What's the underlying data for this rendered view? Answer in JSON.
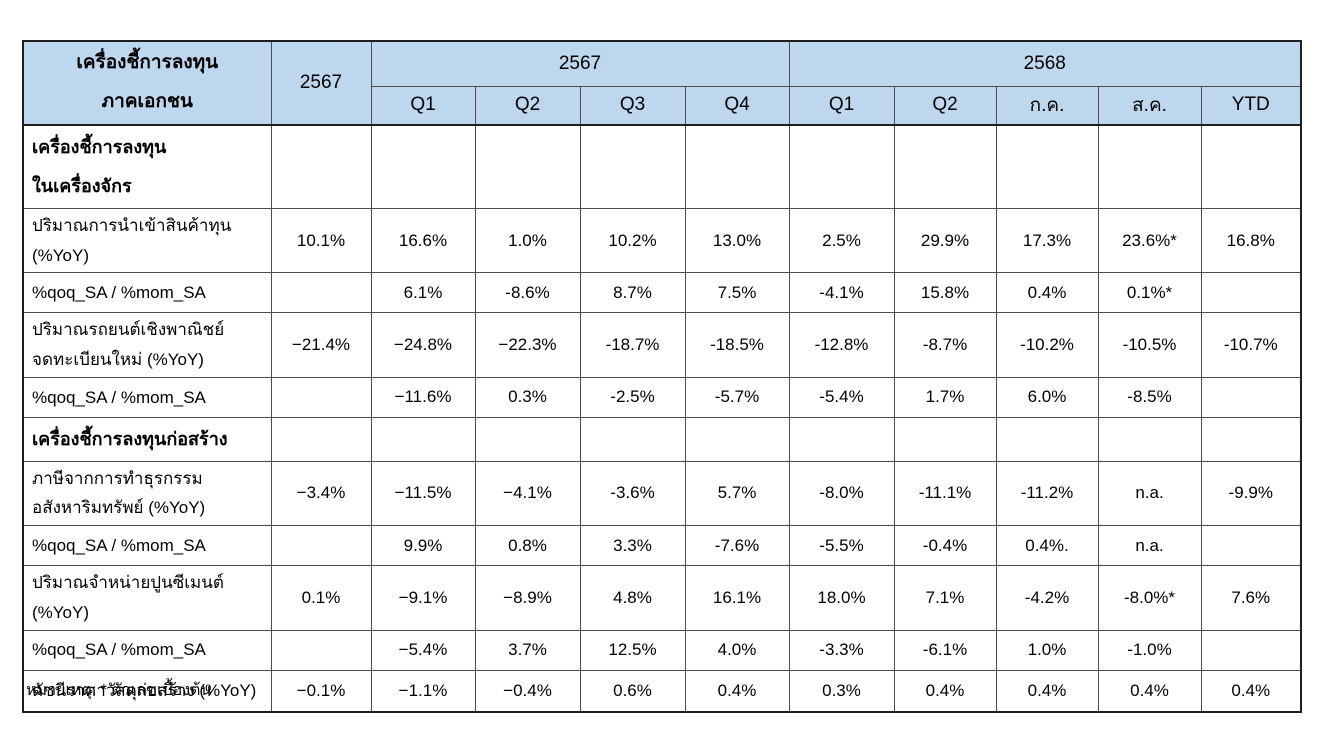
{
  "table": {
    "header": {
      "title_line1": "เครื่องชี้การลงทุน",
      "title_line2": "ภาคเอกชน",
      "annual_col": "2567",
      "group_2567": "2567",
      "group_2568": "2568",
      "sub_cols": [
        "Q1",
        "Q2",
        "Q3",
        "Q4",
        "Q1",
        "Q2",
        "ก.ค.",
        "ส.ค.",
        "YTD"
      ]
    },
    "rows": [
      {
        "type": "section",
        "label": "เครื่องชี้การลงทุน\nในเครื่องจักร",
        "cells": [
          "",
          "",
          "",
          "",
          "",
          "",
          "",
          "",
          "",
          ""
        ]
      },
      {
        "type": "data",
        "label": "ปริมาณการนำเข้าสินค้าทุน\n(%YoY)",
        "cells": [
          "10.1%",
          "16.6%",
          "1.0%",
          "10.2%",
          "13.0%",
          "2.5%",
          "29.9%",
          "17.3%",
          "23.6%*",
          "16.8%"
        ]
      },
      {
        "type": "subrow",
        "label": "%qoq_SA / %mom_SA",
        "cells": [
          "",
          "6.1%",
          "-8.6%",
          "8.7%",
          "7.5%",
          "-4.1%",
          "15.8%",
          "0.4%",
          "0.1%*",
          ""
        ]
      },
      {
        "type": "data",
        "label": "ปริมาณรถยนต์เชิงพาณิชย์\nจดทะเบียนใหม่ (%YoY)",
        "cells": [
          "−21.4%",
          "−24.8%",
          "−22.3%",
          "-18.7%",
          "-18.5%",
          "-12.8%",
          "-8.7%",
          "-10.2%",
          "-10.5%",
          "-10.7%"
        ]
      },
      {
        "type": "subrow",
        "label": "%qoq_SA / %mom_SA",
        "cells": [
          "",
          "−11.6%",
          "0.3%",
          "-2.5%",
          "-5.7%",
          "-5.4%",
          "1.7%",
          "6.0%",
          "-8.5%",
          ""
        ]
      },
      {
        "type": "section",
        "label": "เครื่องชี้การลงทุนก่อสร้าง",
        "cells": [
          "",
          "",
          "",
          "",
          "",
          "",
          "",
          "",
          "",
          ""
        ]
      },
      {
        "type": "data",
        "label": "ภาษีจากการทำธุรกรรม\nอสังหาริมทรัพย์ (%YoY)",
        "cells": [
          "−3.4%",
          "−11.5%",
          "−4.1%",
          "-3.6%",
          "5.7%",
          "-8.0%",
          "-11.1%",
          "-11.2%",
          "n.a.",
          "-9.9%"
        ]
      },
      {
        "type": "subrow",
        "label": "%qoq_SA / %mom_SA",
        "cells": [
          "",
          "9.9%",
          "0.8%",
          "3.3%",
          "-7.6%",
          "-5.5%",
          "-0.4%",
          "0.4%.",
          "n.a.",
          ""
        ]
      },
      {
        "type": "data",
        "label": "ปริมาณจำหน่ายปูนซีเมนต์\n(%YoY)",
        "cells": [
          "0.1%",
          "−9.1%",
          "−8.9%",
          "4.8%",
          "16.1%",
          "18.0%",
          "7.1%",
          "-4.2%",
          "-8.0%*",
          "7.6%"
        ]
      },
      {
        "type": "subrow",
        "label": "%qoq_SA / %mom_SA",
        "cells": [
          "",
          "−5.4%",
          "3.7%",
          "12.5%",
          "4.0%",
          "-3.3%",
          "-6.1%",
          "1.0%",
          "-1.0%",
          ""
        ]
      },
      {
        "type": "data",
        "label": "ดัชนีราคาวัสดุก่อสร้าง (%YoY)",
        "cells": [
          "−0.1%",
          "−1.1%",
          "−0.4%",
          "0.6%",
          "0.4%",
          "0.3%",
          "0.4%",
          "0.4%",
          "0.4%",
          "0.4%"
        ]
      }
    ]
  },
  "footnote": "หมายเหตุ: * ตัวเลขเบื้องต้น",
  "colors": {
    "header_fill": "#BDD7EE",
    "border_inner": "#4d4d4d",
    "border_outer": "#1f1f1f",
    "text": "#000000"
  }
}
